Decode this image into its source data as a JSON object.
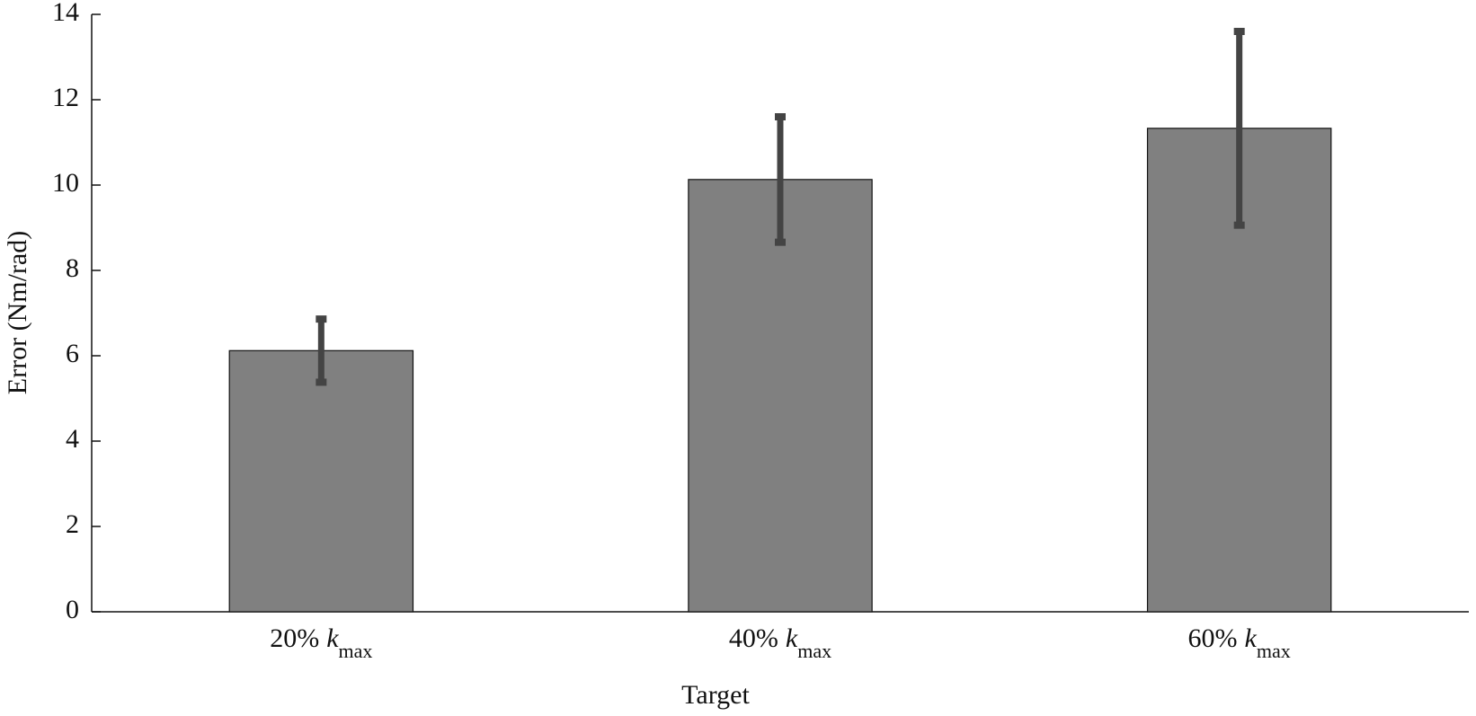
{
  "chart_data": {
    "type": "bar",
    "x_label": "Target",
    "y_label": "Error (Nm/rad)",
    "categories": [
      {
        "text": "20%",
        "var": "k",
        "sub": "max"
      },
      {
        "text": "40%",
        "var": "k",
        "sub": "max"
      },
      {
        "text": "60%",
        "var": "k",
        "sub": "max"
      }
    ],
    "values": [
      6.12,
      10.13,
      11.33
    ],
    "errors": [
      0.74,
      1.47,
      2.27
    ],
    "color": "#808080",
    "error_color": "#444444",
    "ylim": [
      0,
      14
    ],
    "yticks": [
      0,
      2,
      4,
      6,
      8,
      10,
      12,
      14
    ],
    "grid": false
  }
}
